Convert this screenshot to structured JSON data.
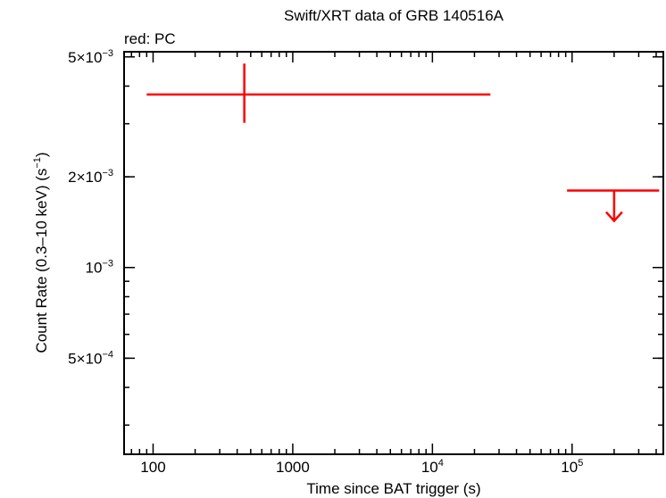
{
  "chart_data": {
    "type": "scatter",
    "title": "Swift/XRT data of GRB 140516A",
    "subtitle": "red: PC",
    "xlabel": "Time since BAT trigger (s)",
    "ylabel": {
      "main": "Count Rate (0.3–10 keV) (s",
      "exp": "−1",
      "end": ")"
    },
    "x_scale": "log",
    "y_scale": "log",
    "xlim": [
      62,
      450000
    ],
    "ylim": [
      0.00024,
      0.0052
    ],
    "x_ticks": [
      {
        "value": 100,
        "base": "100",
        "exp": ""
      },
      {
        "value": 1000,
        "base": "1000",
        "exp": ""
      },
      {
        "value": 10000,
        "base": "10",
        "exp": "4"
      },
      {
        "value": 100000,
        "base": "10",
        "exp": "5"
      }
    ],
    "y_ticks": [
      {
        "value": 0.005,
        "base": "5×10",
        "exp": "−3"
      },
      {
        "value": 0.002,
        "base": "2×10",
        "exp": "−3"
      },
      {
        "value": 0.001,
        "base": "10",
        "exp": "−3"
      },
      {
        "value": 0.0005,
        "base": "5×10",
        "exp": "−4"
      }
    ],
    "grid": false,
    "series": [
      {
        "name": "PC",
        "color": "#ff0000",
        "points": [
          {
            "x": 450,
            "x_lo": 90,
            "x_hi": 26000,
            "y": 0.00375,
            "y_lo": 0.00302,
            "y_hi": 0.00475,
            "upper_limit": false
          },
          {
            "x": 200000,
            "x_lo": 92000,
            "x_hi": 420000,
            "y": 0.0018,
            "upper_limit": true
          }
        ]
      }
    ]
  }
}
